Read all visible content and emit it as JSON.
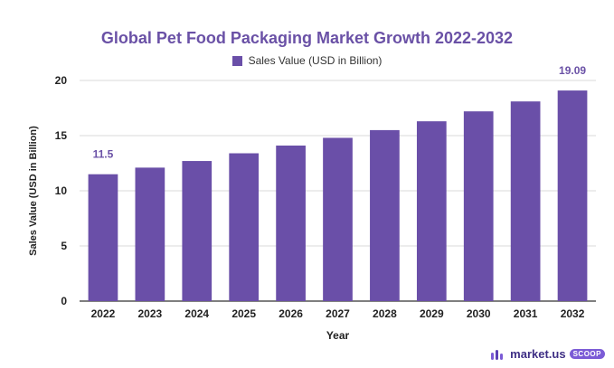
{
  "chart_data": {
    "type": "bar",
    "title": "Global Pet Food Packaging Market Growth 2022-2032",
    "xlabel": "Year",
    "ylabel": "Sales Value (USD in Billion)",
    "ylim": [
      0,
      20
    ],
    "yticks": [
      0,
      5,
      10,
      15,
      20
    ],
    "grid": true,
    "legend_position": "top-center",
    "series": [
      {
        "name": "Sales Value (USD in Billion)",
        "color": "#6a4fa8",
        "values": [
          11.5,
          12.1,
          12.7,
          13.4,
          14.1,
          14.8,
          15.5,
          16.3,
          17.2,
          18.1,
          19.09
        ]
      }
    ],
    "categories": [
      "2022",
      "2023",
      "2024",
      "2025",
      "2026",
      "2027",
      "2028",
      "2029",
      "2030",
      "2031",
      "2032"
    ],
    "data_labels": [
      {
        "category": "2022",
        "text": "11.5"
      },
      {
        "category": "2032",
        "text": "19.09"
      }
    ]
  },
  "brand": {
    "name": "market.us",
    "badge": "SCOOP",
    "icon": "market-us-logo-icon"
  }
}
